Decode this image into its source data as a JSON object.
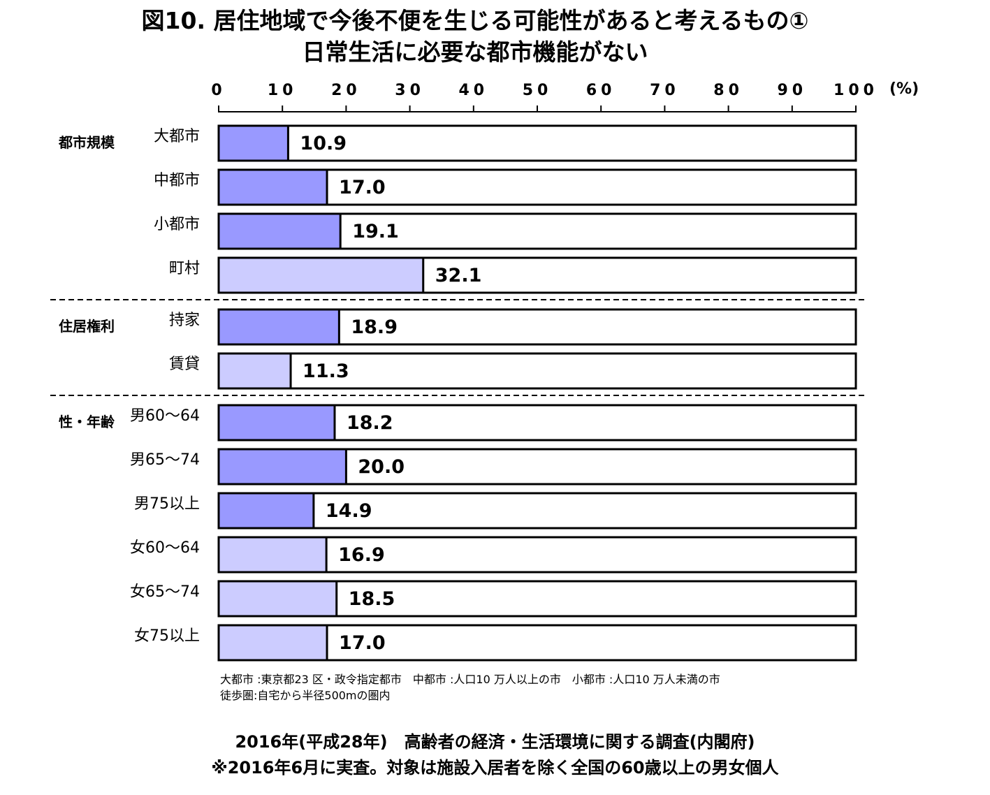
{
  "title": {
    "line1": "図10. 居住地域で今後不便を生じる可能性があると考えるもの①",
    "line2": "日常生活に必要な都市機能がない"
  },
  "chart_data": {
    "type": "bar",
    "orientation": "horizontal",
    "unit": "(%)",
    "xlim": [
      0,
      100
    ],
    "ticks": [
      "0",
      "10",
      "20",
      "30",
      "40",
      "50",
      "60",
      "70",
      "80",
      "90",
      "100"
    ],
    "groups": [
      {
        "label": "都市規模",
        "items": [
          {
            "category": "大都市",
            "value": 10.9,
            "label": "10.9",
            "color": "#9999ff"
          },
          {
            "category": "中都市",
            "value": 17.0,
            "label": "17.0",
            "color": "#9999ff"
          },
          {
            "category": "小都市",
            "value": 19.1,
            "label": "19.1",
            "color": "#9999ff"
          },
          {
            "category": "町村",
            "value": 32.1,
            "label": "32.1",
            "color": "#ccccff"
          }
        ]
      },
      {
        "label": "住居権利",
        "items": [
          {
            "category": "持家",
            "value": 18.9,
            "label": "18.9",
            "color": "#9999ff"
          },
          {
            "category": "賃貸",
            "value": 11.3,
            "label": "11.3",
            "color": "#ccccff"
          }
        ]
      },
      {
        "label": "性・年齢",
        "items": [
          {
            "category": "男60～64",
            "value": 18.2,
            "label": "18.2",
            "color": "#9999ff"
          },
          {
            "category": "男65～74",
            "value": 20.0,
            "label": "20.0",
            "color": "#9999ff"
          },
          {
            "category": "男75以上",
            "value": 14.9,
            "label": "14.9",
            "color": "#9999ff"
          },
          {
            "category": "女60～64",
            "value": 16.9,
            "label": "16.9",
            "color": "#ccccff"
          },
          {
            "category": "女65～74",
            "value": 18.5,
            "label": "18.5",
            "color": "#ccccff"
          },
          {
            "category": "女75以上",
            "value": 17.0,
            "label": "17.0",
            "color": "#ccccff"
          }
        ]
      }
    ]
  },
  "notes": {
    "line1": "大都市 :東京都23 区・政令指定都市　中都市 :人口10 万人以上の市　小都市 :人口10 万人未満の市",
    "line2": "徒歩圏:自宅から半径500mの圏内"
  },
  "source": {
    "line1": "2016年(平成28年)　高齢者の経済・生活環境に関する調査(内閣府)",
    "line2": "※2016年6月に実査。対象は施設入居者を除く全国の60歳以上の男女個人"
  }
}
